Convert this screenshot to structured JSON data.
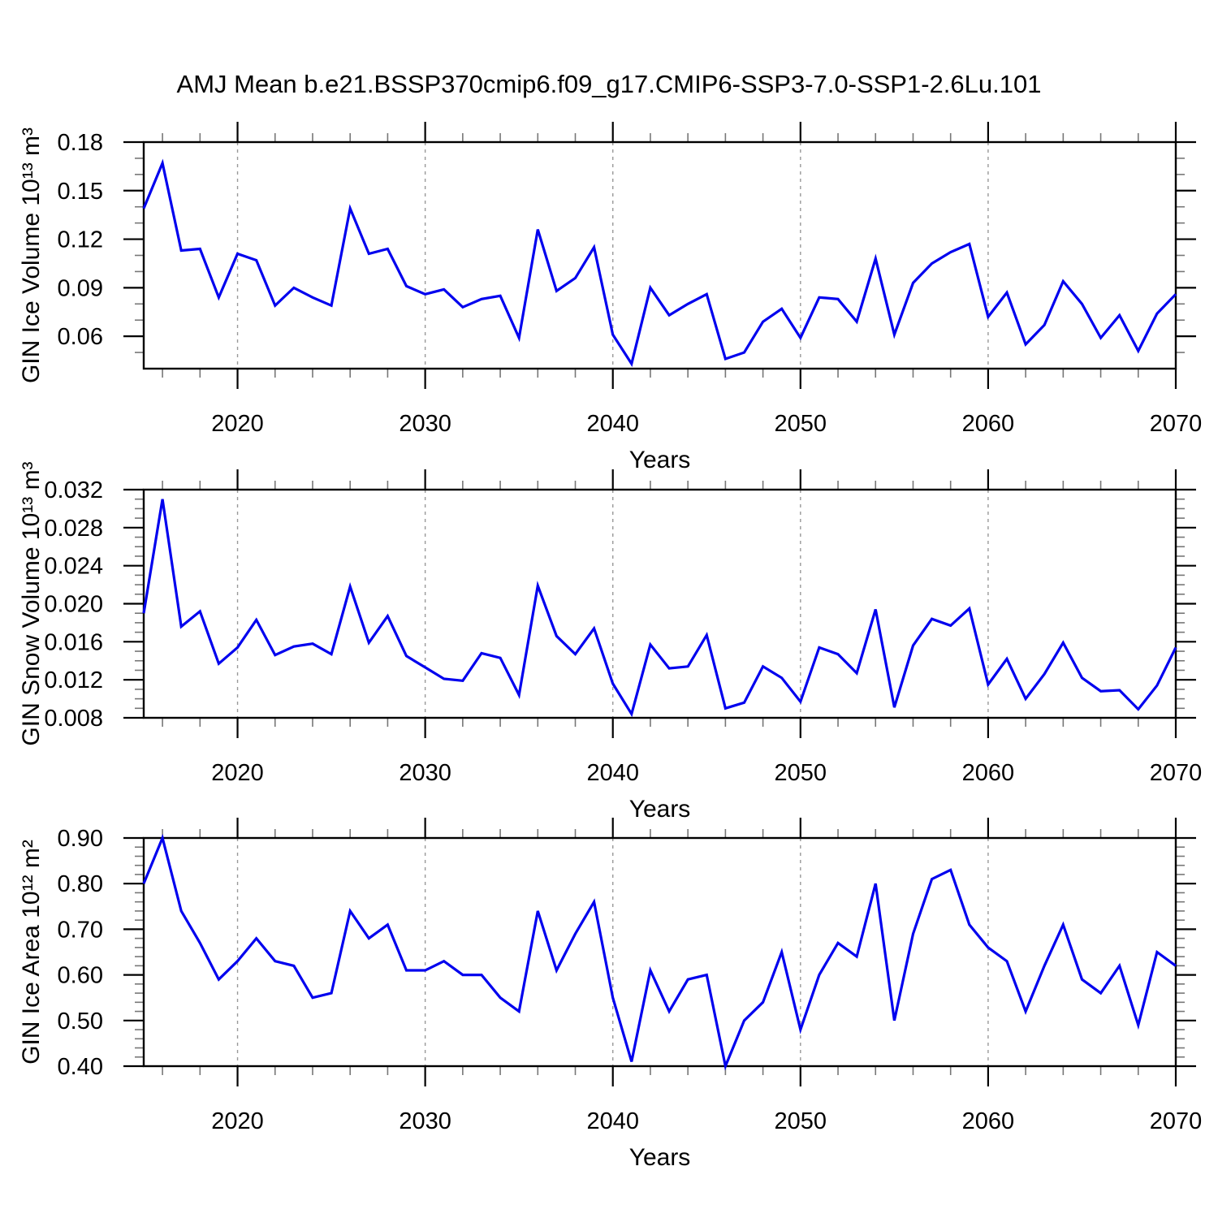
{
  "chart_data": {
    "type": "line",
    "title": "AMJ Mean b.e21.BSSP370cmip6.f09_g17.CMIP6-SSP3-7.0-SSP1-2.6Lu.101",
    "x_label": "Years",
    "legend": "none",
    "grid": "vertical-dashed",
    "line_color": "#0000ee",
    "axis_color": "#000000",
    "minor_tick_color": "#777777",
    "gridline_color": "#999999",
    "xlim": [
      2015,
      2070
    ],
    "x": [
      2015,
      2016,
      2017,
      2018,
      2019,
      2020,
      2021,
      2022,
      2023,
      2024,
      2025,
      2026,
      2027,
      2028,
      2029,
      2030,
      2031,
      2032,
      2033,
      2034,
      2035,
      2036,
      2037,
      2038,
      2039,
      2040,
      2041,
      2042,
      2043,
      2044,
      2045,
      2046,
      2047,
      2048,
      2049,
      2050,
      2051,
      2052,
      2053,
      2054,
      2055,
      2056,
      2057,
      2058,
      2059,
      2060,
      2061,
      2062,
      2063,
      2064,
      2065,
      2066,
      2067,
      2068,
      2069,
      2070
    ],
    "x_ticks": [
      2020,
      2030,
      2040,
      2050,
      2060,
      2070
    ],
    "x_tick_labels": [
      "2020",
      "2030",
      "2040",
      "2050",
      "2060",
      "2070"
    ],
    "x_minor_step": 2,
    "x_gridlines": [
      2020,
      2030,
      2040,
      2050,
      2060
    ],
    "panels": [
      {
        "name": "ice-volume",
        "ylabel": "GIN Ice Volume 10¹³ m³",
        "xlabel": "Years",
        "ylim": [
          0.04,
          0.18
        ],
        "y_ticks": [
          0.06,
          0.09,
          0.12,
          0.15,
          0.18
        ],
        "y_tick_labels": [
          "0.06",
          "0.09",
          "0.12",
          "0.15",
          "0.18"
        ],
        "y_minor_step": 0.01,
        "values": [
          0.139,
          0.167,
          0.113,
          0.114,
          0.084,
          0.111,
          0.107,
          0.079,
          0.09,
          0.084,
          0.079,
          0.139,
          0.111,
          0.114,
          0.091,
          0.086,
          0.089,
          0.078,
          0.083,
          0.085,
          0.059,
          0.126,
          0.088,
          0.096,
          0.115,
          0.061,
          0.043,
          0.09,
          0.073,
          0.08,
          0.086,
          0.046,
          0.05,
          0.069,
          0.077,
          0.059,
          0.084,
          0.083,
          0.069,
          0.108,
          0.061,
          0.093,
          0.105,
          0.112,
          0.117,
          0.072,
          0.087,
          0.055,
          0.067,
          0.094,
          0.08,
          0.059,
          0.073,
          0.051,
          0.074,
          0.086
        ]
      },
      {
        "name": "snow-volume",
        "ylabel": "GIN Snow Volume 10¹³ m³",
        "xlabel": "Years",
        "ylim": [
          0.008,
          0.032
        ],
        "y_ticks": [
          0.008,
          0.012,
          0.016,
          0.02,
          0.024,
          0.028,
          0.032
        ],
        "y_tick_labels": [
          "0.008",
          "0.012",
          "0.016",
          "0.020",
          "0.024",
          "0.028",
          "0.032"
        ],
        "y_minor_step": 0.001,
        "values": [
          0.019,
          0.031,
          0.0176,
          0.0192,
          0.0137,
          0.0154,
          0.0183,
          0.0146,
          0.0155,
          0.0158,
          0.0147,
          0.0218,
          0.0159,
          0.0187,
          0.0145,
          0.0133,
          0.0121,
          0.0119,
          0.0148,
          0.0143,
          0.0104,
          0.0219,
          0.0166,
          0.0147,
          0.0174,
          0.0116,
          0.0084,
          0.0157,
          0.0132,
          0.0134,
          0.0167,
          0.009,
          0.0096,
          0.0134,
          0.0122,
          0.0097,
          0.0154,
          0.0147,
          0.0127,
          0.0194,
          0.0091,
          0.0156,
          0.0184,
          0.0177,
          0.0195,
          0.0115,
          0.0142,
          0.01,
          0.0126,
          0.0159,
          0.0122,
          0.0108,
          0.0109,
          0.0089,
          0.0114,
          0.0154
        ]
      },
      {
        "name": "ice-area",
        "ylabel": "GIN Ice Area 10¹² m²",
        "xlabel": "Years",
        "ylim": [
          0.4,
          0.9
        ],
        "y_ticks": [
          0.4,
          0.5,
          0.6,
          0.7,
          0.8,
          0.9
        ],
        "y_tick_labels": [
          "0.40",
          "0.50",
          "0.60",
          "0.70",
          "0.80",
          "0.90"
        ],
        "y_minor_step": 0.02,
        "values": [
          0.8,
          0.9,
          0.74,
          0.67,
          0.59,
          0.63,
          0.68,
          0.63,
          0.62,
          0.55,
          0.56,
          0.74,
          0.68,
          0.71,
          0.61,
          0.61,
          0.63,
          0.6,
          0.6,
          0.55,
          0.52,
          0.74,
          0.61,
          0.69,
          0.76,
          0.55,
          0.41,
          0.61,
          0.52,
          0.59,
          0.6,
          0.4,
          0.5,
          0.54,
          0.65,
          0.48,
          0.6,
          0.67,
          0.64,
          0.8,
          0.5,
          0.69,
          0.81,
          0.83,
          0.71,
          0.66,
          0.63,
          0.52,
          0.62,
          0.71,
          0.59,
          0.56,
          0.62,
          0.49,
          0.65,
          0.62
        ]
      }
    ]
  }
}
